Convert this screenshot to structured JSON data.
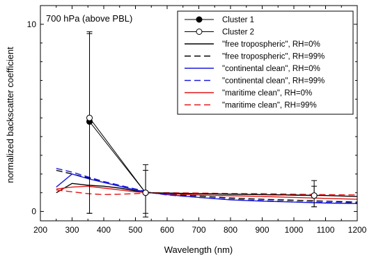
{
  "chart_data": {
    "type": "line",
    "annotation": "700 hPa (above PBL)",
    "xlabel": "Wavelength (nm)",
    "ylabel": "normalized backscatter coefficient",
    "xlim": [
      200,
      1200
    ],
    "ylim": [
      -0.5,
      11
    ],
    "x_ticks": [
      200,
      300,
      400,
      500,
      600,
      700,
      800,
      900,
      1000,
      1100,
      1200
    ],
    "y_ticks": [
      0,
      10
    ],
    "grid": false,
    "legend_position": "top-right",
    "clusters": [
      {
        "name": "Cluster 1",
        "marker": "filled-circle",
        "color": "#000000",
        "points": [
          {
            "x": 355,
            "y": 4.8,
            "err_low": 4.9,
            "err_high": 4.7
          },
          {
            "x": 532,
            "y": 1.0,
            "err_low": 1.3,
            "err_high": 1.5
          },
          {
            "x": 1064,
            "y": 0.85,
            "err_low": 0.6,
            "err_high": 0.5
          }
        ]
      },
      {
        "name": "Cluster 2",
        "marker": "open-circle",
        "color": "#000000",
        "points": [
          {
            "x": 355,
            "y": 5.0,
            "err_low": 5.1,
            "err_high": 4.6
          },
          {
            "x": 532,
            "y": 1.0,
            "err_low": 1.1,
            "err_high": 1.2
          },
          {
            "x": 1064,
            "y": 0.85,
            "err_low": 0.6,
            "err_high": 0.8
          }
        ]
      }
    ],
    "series": [
      {
        "name": "\"free tropospheric\", RH=0%",
        "color": "#000000",
        "dash": "solid",
        "x": [
          250,
          300,
          350,
          400,
          450,
          500,
          550,
          600,
          700,
          800,
          900,
          1000,
          1100,
          1200
        ],
        "y": [
          1.0,
          1.5,
          1.4,
          1.35,
          1.25,
          1.1,
          1.0,
          0.98,
          0.95,
          0.92,
          0.9,
          0.88,
          0.85,
          0.8
        ]
      },
      {
        "name": "\"free tropospheric\", RH=99%",
        "color": "#000000",
        "dash": "dashed",
        "x": [
          250,
          300,
          350,
          400,
          450,
          500,
          550,
          600,
          700,
          800,
          900,
          1000,
          1100,
          1200
        ],
        "y": [
          2.2,
          2.0,
          1.8,
          1.55,
          1.35,
          1.15,
          1.0,
          0.92,
          0.82,
          0.72,
          0.65,
          0.6,
          0.55,
          0.5
        ]
      },
      {
        "name": "\"continental clean\", RH=0%",
        "color": "#1a1adc",
        "dash": "solid",
        "x": [
          250,
          300,
          350,
          400,
          450,
          500,
          550,
          600,
          700,
          800,
          900,
          1000,
          1100,
          1200
        ],
        "y": [
          1.3,
          2.0,
          1.75,
          1.55,
          1.35,
          1.15,
          1.0,
          0.9,
          0.75,
          0.62,
          0.55,
          0.5,
          0.45,
          0.42
        ]
      },
      {
        "name": "\"continental clean\", RH=99%",
        "color": "#1a1adc",
        "dash": "dashed",
        "x": [
          250,
          300,
          350,
          400,
          450,
          500,
          550,
          600,
          700,
          800,
          900,
          1000,
          1100,
          1200
        ],
        "y": [
          2.3,
          2.1,
          1.85,
          1.6,
          1.4,
          1.2,
          1.0,
          0.88,
          0.75,
          0.65,
          0.58,
          0.52,
          0.48,
          0.45
        ]
      },
      {
        "name": "\"maritime clean\", RH=0%",
        "color": "#e01818",
        "dash": "solid",
        "x": [
          250,
          300,
          350,
          400,
          450,
          500,
          550,
          600,
          700,
          800,
          900,
          1000,
          1100,
          1200
        ],
        "y": [
          1.2,
          1.3,
          1.35,
          1.25,
          1.15,
          1.05,
          1.0,
          0.95,
          0.88,
          0.84,
          0.8,
          0.75,
          0.7,
          0.65
        ]
      },
      {
        "name": "\"maritime clean\", RH=99%",
        "color": "#e01818",
        "dash": "dashed",
        "x": [
          250,
          300,
          350,
          400,
          450,
          500,
          550,
          600,
          700,
          800,
          900,
          1000,
          1100,
          1200
        ],
        "y": [
          1.15,
          1.05,
          0.95,
          0.9,
          0.92,
          0.95,
          1.0,
          1.0,
          0.98,
          0.96,
          0.95,
          0.92,
          0.9,
          0.88
        ]
      }
    ]
  }
}
